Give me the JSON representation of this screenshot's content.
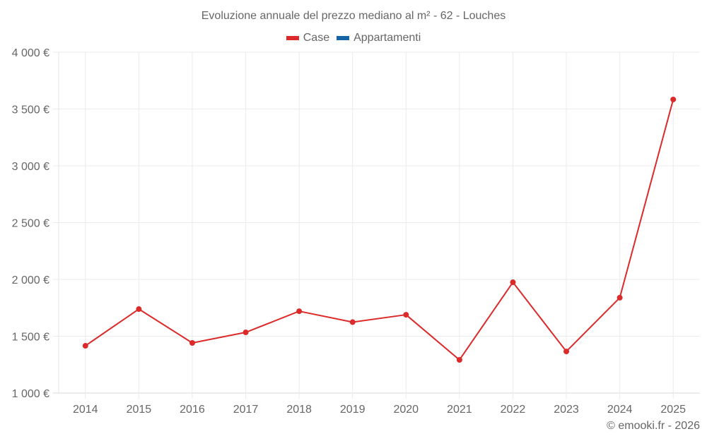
{
  "chart_data": {
    "type": "line",
    "title": "Evoluzione annuale del prezzo mediano al m² - 62 - Louches",
    "xlabel": "",
    "ylabel": "",
    "categories": [
      "2014",
      "2015",
      "2016",
      "2017",
      "2018",
      "2019",
      "2020",
      "2021",
      "2022",
      "2023",
      "2024",
      "2025"
    ],
    "series": [
      {
        "name": "Case",
        "color": "#dc2a2a",
        "values": [
          1416,
          1739,
          1441,
          1534,
          1720,
          1624,
          1689,
          1292,
          1975,
          1366,
          1839,
          3584
        ]
      },
      {
        "name": "Appartamenti",
        "color": "#1565a6",
        "values": []
      }
    ],
    "ylim": [
      1000,
      4000
    ],
    "yticks": [
      1000,
      1500,
      2000,
      2500,
      3000,
      3500,
      4000
    ],
    "ytick_labels": [
      "1 000 €",
      "1 500 €",
      "2 000 €",
      "2 500 €",
      "3 000 €",
      "3 500 €",
      "4 000 €"
    ],
    "grid": true,
    "legend_position": "top"
  },
  "legend": [
    {
      "label": "Case",
      "color": "#dc2a2a"
    },
    {
      "label": "Appartamenti",
      "color": "#1565a6"
    }
  ],
  "credit": "© emooki.fr - 2026"
}
